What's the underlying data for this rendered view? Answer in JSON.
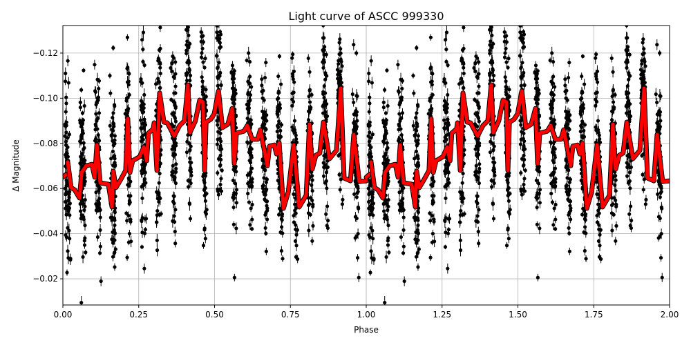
{
  "chart_data": {
    "type": "scatter",
    "title": "Light curve of ASCC 999330",
    "xlabel": "Phase",
    "ylabel": "Δ Magnitude",
    "xlim": [
      0.0,
      2.0
    ],
    "ylim": [
      -0.1322,
      -0.0084
    ],
    "y_inverted": true,
    "grid": true,
    "x_ticks": [
      "0.00",
      "0.25",
      "0.50",
      "0.75",
      "1.00",
      "1.25",
      "1.50",
      "1.75",
      "2.00"
    ],
    "x_tick_values": [
      0,
      0.25,
      0.5,
      0.75,
      1,
      1.25,
      1.5,
      1.75,
      2
    ],
    "y_ticks": [
      "−0.12",
      "−0.10",
      "−0.08",
      "−0.06",
      "−0.04",
      "−0.02"
    ],
    "y_tick_values": [
      -0.12,
      -0.1,
      -0.08,
      -0.06,
      -0.04,
      -0.02
    ],
    "observations": {
      "color": "#000000",
      "marker": "circle with error bars",
      "description_of_distribution": "dense near-vertical bands, about 20 per phase cycle, spanning roughly -0.13 to -0.01"
    },
    "model": {
      "color": "#ff0000",
      "outline_color": "#000000",
      "repeats_each_cycle": true,
      "segments": [
        [
          [
            0.0,
            -0.065
          ],
          [
            0.014,
            -0.0665
          ]
        ],
        [
          [
            0.016,
            -0.0717
          ],
          [
            0.027,
            -0.0604
          ],
          [
            0.039,
            -0.0594
          ],
          [
            0.055,
            -0.0558
          ],
          [
            0.062,
            -0.0671
          ],
          [
            0.077,
            -0.0701
          ],
          [
            0.096,
            -0.0707
          ],
          [
            0.105,
            -0.065
          ],
          [
            0.112,
            -0.0793
          ],
          [
            0.123,
            -0.0625
          ],
          [
            0.15,
            -0.0619
          ],
          [
            0.162,
            -0.0518
          ],
          [
            0.166,
            -0.0677
          ],
          [
            0.175,
            -0.0604
          ],
          [
            0.191,
            -0.064
          ],
          [
            0.207,
            -0.068
          ],
          [
            0.214,
            -0.091
          ],
          [
            0.221,
            -0.0671
          ],
          [
            0.23,
            -0.0723
          ],
          [
            0.253,
            -0.0741
          ],
          [
            0.267,
            -0.0784
          ],
          [
            0.276,
            -0.0723
          ],
          [
            0.282,
            -0.0845
          ],
          [
            0.298,
            -0.0864
          ],
          [
            0.301,
            -0.0891
          ],
          [
            0.31,
            -0.068
          ],
          [
            0.319,
            -0.1023
          ],
          [
            0.333,
            -0.0894
          ],
          [
            0.344,
            -0.0891
          ],
          [
            0.367,
            -0.0833
          ],
          [
            0.385,
            -0.0879
          ],
          [
            0.401,
            -0.09
          ],
          [
            0.412,
            -0.1059
          ],
          [
            0.419,
            -0.0848
          ],
          [
            0.437,
            -0.09
          ],
          [
            0.451,
            -0.0992
          ],
          [
            0.462,
            -0.0983
          ],
          [
            0.467,
            -0.068
          ],
          [
            0.472,
            -0.0894
          ],
          [
            0.487,
            -0.0906
          ],
          [
            0.499,
            -0.0931
          ],
          [
            0.513,
            -0.1032
          ],
          [
            0.526,
            -0.087
          ],
          [
            0.544,
            -0.0885
          ],
          [
            0.558,
            -0.0955
          ],
          [
            0.565,
            -0.0711
          ],
          [
            0.572,
            -0.0845
          ],
          [
            0.597,
            -0.0854
          ],
          [
            0.608,
            -0.0879
          ],
          [
            0.624,
            -0.0818
          ],
          [
            0.642,
            -0.0818
          ],
          [
            0.651,
            -0.086
          ],
          [
            0.674,
            -0.0701
          ],
          [
            0.681,
            -0.0787
          ],
          [
            0.697,
            -0.0793
          ],
          [
            0.704,
            -0.0753
          ],
          [
            0.713,
            -0.0802
          ],
          [
            0.727,
            -0.0512
          ],
          [
            0.743,
            -0.0585
          ],
          [
            0.761,
            -0.0793
          ],
          [
            0.779,
            -0.0518
          ],
          [
            0.802,
            -0.057
          ],
          [
            0.813,
            -0.0885
          ],
          [
            0.822,
            -0.0686
          ],
          [
            0.834,
            -0.0747
          ],
          [
            0.847,
            -0.0757
          ],
          [
            0.859,
            -0.0894
          ],
          [
            0.879,
            -0.0732
          ],
          [
            0.902,
            -0.0769
          ],
          [
            0.916,
            -0.1044
          ],
          [
            0.927,
            -0.0646
          ],
          [
            0.948,
            -0.0634
          ],
          [
            0.959,
            -0.0839
          ],
          [
            0.977,
            -0.0631
          ],
          [
            1.0,
            -0.0634
          ]
        ]
      ]
    }
  }
}
